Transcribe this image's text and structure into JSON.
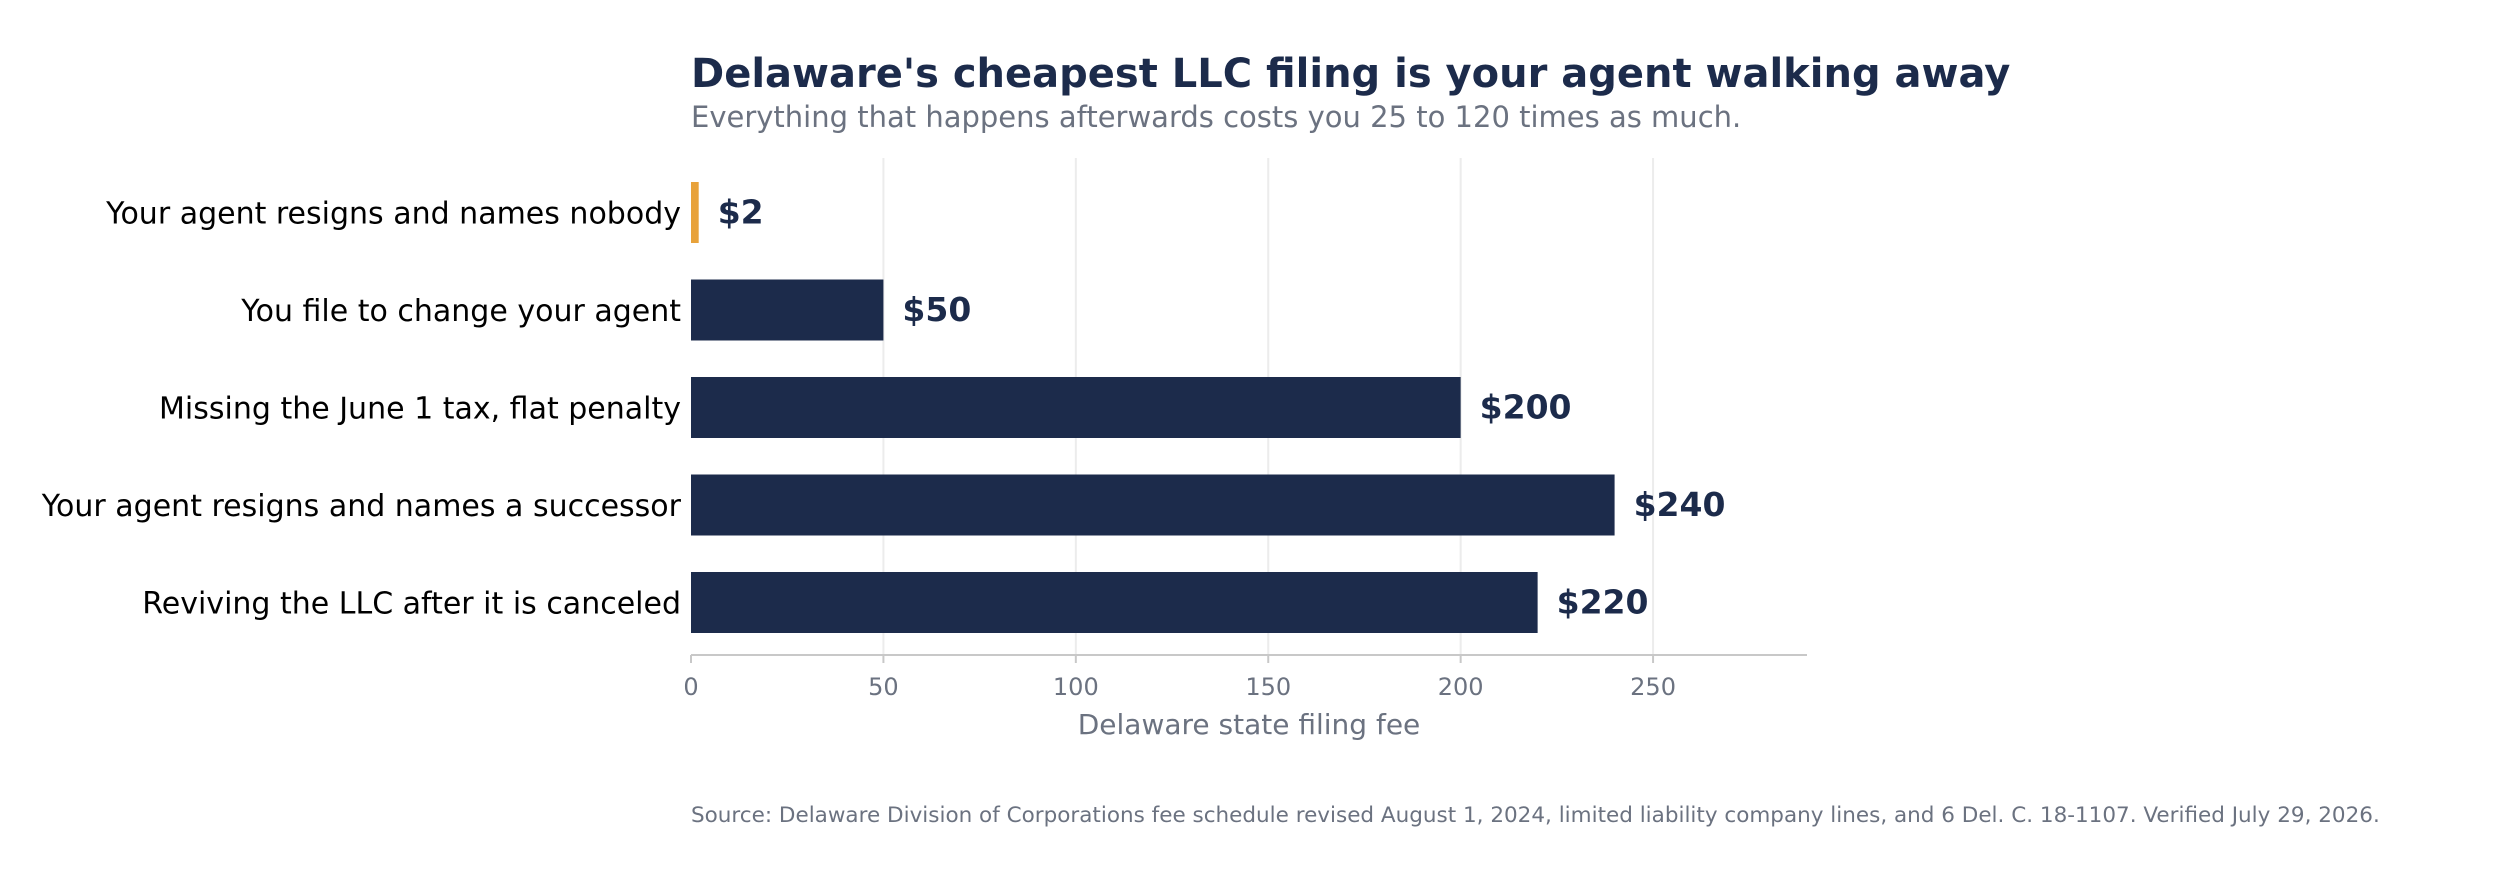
{
  "chart_data": {
    "type": "bar",
    "orientation": "horizontal",
    "title": "Delaware's cheapest LLC filing is your agent walking away",
    "subtitle": "Everything that happens afterwards costs you 25 to 120 times as much.",
    "categories": [
      "Your agent resigns and names nobody",
      "You file to change your agent",
      "Missing the June 1 tax, flat penalty",
      "Your agent resigns and names a successor",
      "Reviving the LLC after it is canceled"
    ],
    "values": [
      2,
      50,
      200,
      240,
      220
    ],
    "value_labels": [
      "$2",
      "$50",
      "$200",
      "$240",
      "$220"
    ],
    "highlight_index": 0,
    "xlabel": "Delaware state filing fee",
    "ylabel": "",
    "xlim": [
      0,
      290
    ],
    "xticks": [
      0,
      50,
      100,
      150,
      200,
      250
    ],
    "xtick_labels": [
      "0",
      "50",
      "100",
      "150",
      "200",
      "250"
    ],
    "grid": "vertical",
    "legend": "none",
    "source": "Source: Delaware Division of Corporations fee schedule revised August 1, 2024, limited liability company lines, and 6 Del. C. 18-1107. Verified July 29, 2026."
  },
  "colors": {
    "bar": "#1c2b4b",
    "highlight": "#e8a23a",
    "title": "#1c2b4b",
    "muted": "#6b7280",
    "grid": "#ececec",
    "axis": "#c8c8c8",
    "category_text": "#000000",
    "value_text": "#1c2b4b"
  }
}
